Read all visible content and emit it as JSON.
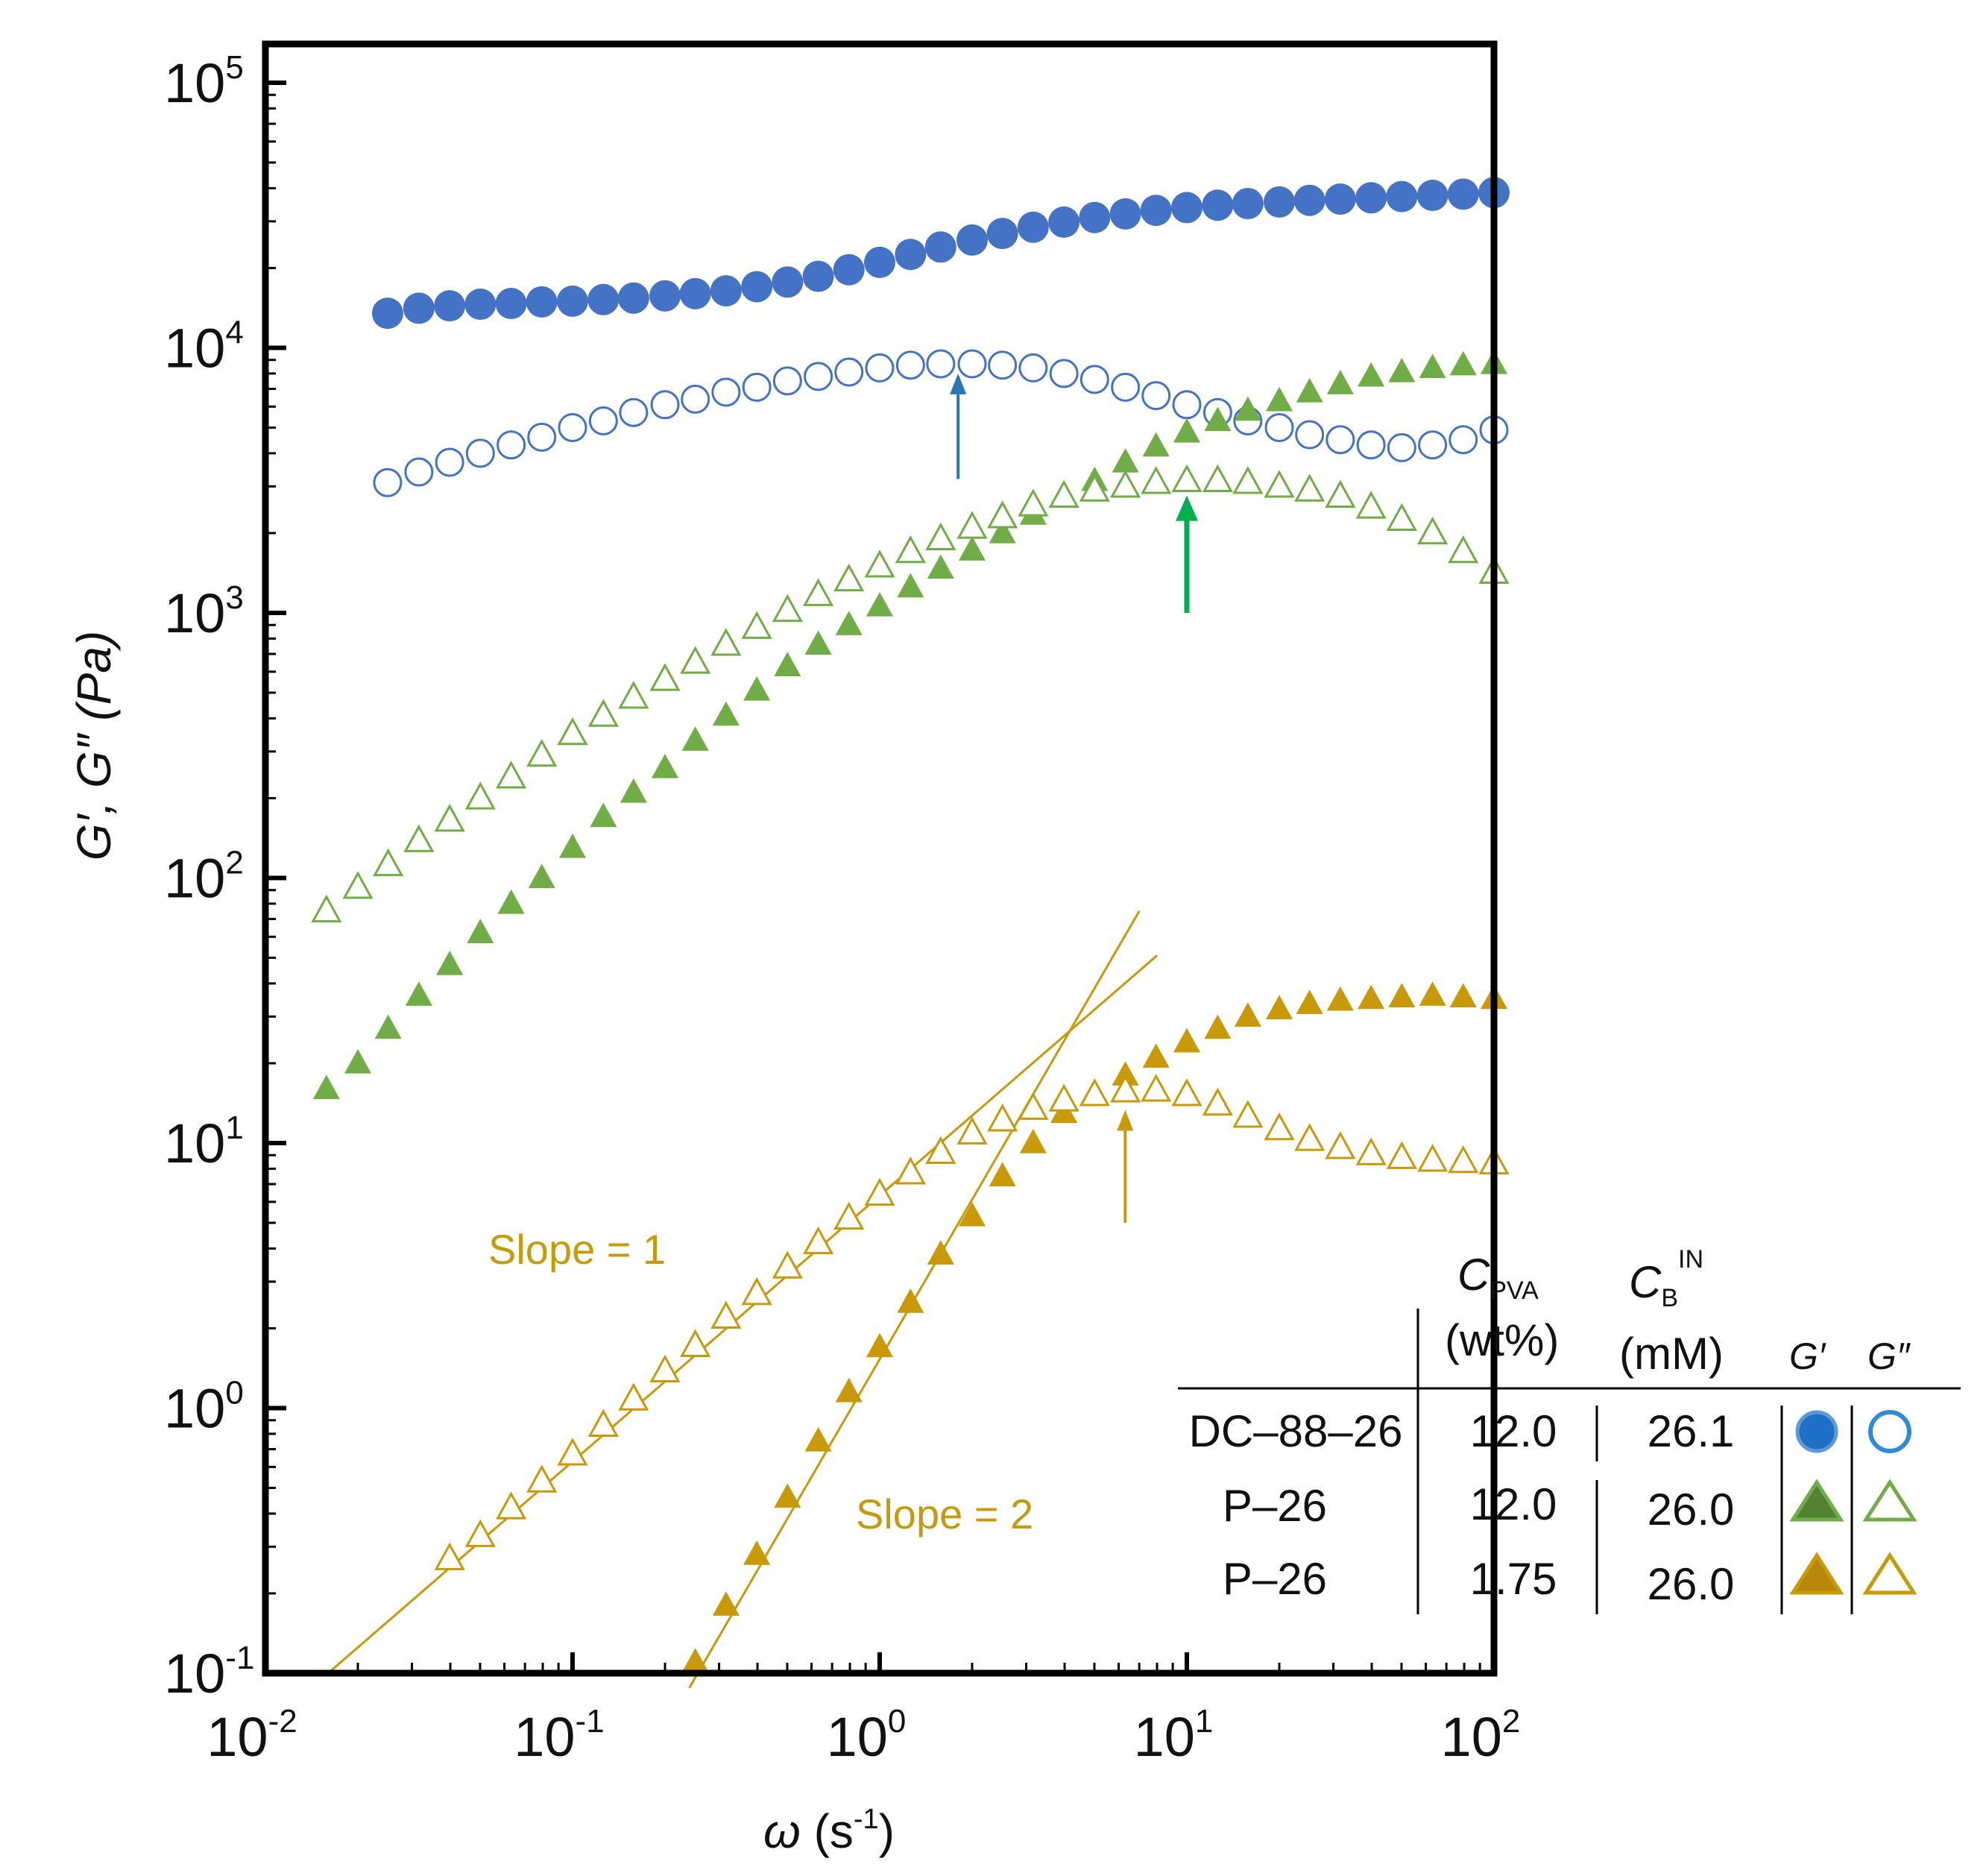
{
  "chart_data": {
    "type": "scatter",
    "title": "",
    "xscale": "log",
    "yscale": "log",
    "xlim": [
      0.01,
      100
    ],
    "ylim": [
      0.1,
      140000
    ],
    "xlabel": {
      "symbol": "ω",
      "text": " (s",
      "exp": "-1",
      "close": ")"
    },
    "ylabel": "G′, G″ (Pa)",
    "xticks": [
      {
        "base": "10",
        "exp": "-2",
        "value": 0.01
      },
      {
        "base": "10",
        "exp": "-1",
        "value": 0.1
      },
      {
        "base": "10",
        "exp": "0",
        "value": 1
      },
      {
        "base": "10",
        "exp": "1",
        "value": 10
      },
      {
        "base": "10",
        "exp": "2",
        "value": 100
      }
    ],
    "yticks": [
      {
        "base": "10",
        "exp": "-1",
        "value": 0.1
      },
      {
        "base": "10",
        "exp": "0",
        "value": 1
      },
      {
        "base": "10",
        "exp": "1",
        "value": 10
      },
      {
        "base": "10",
        "exp": "2",
        "value": 100
      },
      {
        "base": "10",
        "exp": "3",
        "value": 1000
      },
      {
        "base": "10",
        "exp": "4",
        "value": 10000
      },
      {
        "base": "10",
        "exp": "5",
        "value": 100000
      }
    ],
    "colors": {
      "blue": "#4472c4",
      "green": "#70ad47",
      "gold": "#c89a0a",
      "blue_arrow": "#2e75b6",
      "green_arrow": "#00b050"
    },
    "series": [
      {
        "name": "DC-88-26 G′",
        "marker": "circle",
        "filled": true,
        "color": "#4472c4",
        "x": [
          0.025,
          0.0316,
          0.0398,
          0.0501,
          0.0631,
          0.0794,
          0.1,
          0.126,
          0.158,
          0.2,
          0.251,
          0.316,
          0.398,
          0.501,
          0.631,
          0.794,
          1.0,
          1.26,
          1.58,
          2.0,
          2.51,
          3.16,
          3.98,
          5.01,
          6.31,
          7.94,
          10,
          12.6,
          15.8,
          20,
          25.1,
          31.6,
          39.8,
          50.1,
          63.1,
          79.4,
          100
        ],
        "y": [
          13500,
          14100,
          14400,
          14600,
          14700,
          14900,
          15000,
          15200,
          15400,
          15700,
          16000,
          16400,
          17000,
          17700,
          18600,
          19700,
          21000,
          22500,
          24000,
          25500,
          27000,
          28500,
          29800,
          31000,
          32000,
          33000,
          33800,
          34500,
          35000,
          35500,
          36000,
          36400,
          36800,
          37200,
          37600,
          38000,
          38500
        ]
      },
      {
        "name": "DC-88-26 G″",
        "marker": "circle",
        "filled": false,
        "color": "#4472c4",
        "x": [
          0.025,
          0.0316,
          0.0398,
          0.0501,
          0.0631,
          0.0794,
          0.1,
          0.126,
          0.158,
          0.2,
          0.251,
          0.316,
          0.398,
          0.501,
          0.631,
          0.794,
          1.0,
          1.26,
          1.58,
          2.0,
          2.51,
          3.16,
          3.98,
          5.01,
          6.31,
          7.94,
          10,
          12.6,
          15.8,
          20,
          25.1,
          31.6,
          39.8,
          50.1,
          63.1,
          79.4,
          100
        ],
        "y": [
          3100,
          3400,
          3700,
          4000,
          4300,
          4600,
          5000,
          5300,
          5700,
          6100,
          6400,
          6800,
          7100,
          7500,
          7800,
          8100,
          8400,
          8600,
          8700,
          8700,
          8600,
          8400,
          8000,
          7600,
          7100,
          6600,
          6100,
          5700,
          5300,
          5000,
          4700,
          4500,
          4300,
          4200,
          4300,
          4500,
          4900
        ]
      },
      {
        "name": "P-26 (12.0 wt%) G′",
        "marker": "triangle",
        "filled": true,
        "color": "#70ad47",
        "x": [
          0.0158,
          0.02,
          0.0251,
          0.0316,
          0.0398,
          0.0501,
          0.0631,
          0.0794,
          0.1,
          0.126,
          0.158,
          0.2,
          0.251,
          0.316,
          0.398,
          0.501,
          0.631,
          0.794,
          1.0,
          1.26,
          1.58,
          2.0,
          2.51,
          3.16,
          3.98,
          5.01,
          6.31,
          7.94,
          10,
          12.6,
          15.8,
          20,
          25.1,
          31.6,
          39.8,
          50.1,
          63.1,
          79.4,
          100
        ],
        "y": [
          16,
          20,
          27,
          36,
          47,
          62,
          80,
          100,
          130,
          170,
          210,
          260,
          330,
          410,
          510,
          630,
          760,
          900,
          1060,
          1250,
          1470,
          1720,
          2000,
          2350,
          2750,
          3150,
          3700,
          4250,
          4800,
          5300,
          5800,
          6300,
          6800,
          7300,
          7800,
          8100,
          8400,
          8600,
          8700
        ]
      },
      {
        "name": "P-26 (12.0 wt%) G″",
        "marker": "triangle",
        "filled": false,
        "color": "#70ad47",
        "x": [
          0.0158,
          0.02,
          0.0251,
          0.0316,
          0.0398,
          0.0501,
          0.0631,
          0.0794,
          0.1,
          0.126,
          0.158,
          0.2,
          0.251,
          0.316,
          0.398,
          0.501,
          0.631,
          0.794,
          1.0,
          1.26,
          1.58,
          2.0,
          2.51,
          3.16,
          3.98,
          5.01,
          6.31,
          7.94,
          10,
          12.6,
          15.8,
          20,
          25.1,
          31.6,
          39.8,
          50.1,
          63.1,
          79.4,
          100
        ],
        "y": [
          75,
          92,
          112,
          138,
          165,
          200,
          240,
          290,
          350,
          410,
          480,
          560,
          650,
          760,
          880,
          1020,
          1170,
          1330,
          1500,
          1700,
          1900,
          2100,
          2300,
          2550,
          2750,
          2900,
          3000,
          3100,
          3150,
          3150,
          3100,
          3000,
          2900,
          2750,
          2500,
          2250,
          2000,
          1700,
          1420
        ]
      },
      {
        "name": "P-26 (1.75 wt%) G′",
        "marker": "triangle",
        "filled": true,
        "color": "#c89a0a",
        "x": [
          0.251,
          0.316,
          0.398,
          0.501,
          0.631,
          0.794,
          1.0,
          1.26,
          1.58,
          2.0,
          2.51,
          3.16,
          3.98,
          5.01,
          6.31,
          7.94,
          10,
          12.6,
          15.8,
          20,
          25.1,
          31.6,
          39.8,
          50.1,
          63.1,
          79.4,
          100
        ],
        "y": [
          0.11,
          0.18,
          0.28,
          0.46,
          0.75,
          1.15,
          1.7,
          2.5,
          3.8,
          5.3,
          7.5,
          10,
          13,
          15.5,
          18,
          21,
          24,
          27,
          30,
          32,
          33.5,
          34.5,
          35,
          35.5,
          36,
          35.5,
          35
        ]
      },
      {
        "name": "P-26 (1.75 wt%) G″",
        "marker": "triangle",
        "filled": false,
        "color": "#c89a0a",
        "x": [
          0.0398,
          0.0501,
          0.0631,
          0.0794,
          0.1,
          0.126,
          0.158,
          0.2,
          0.251,
          0.316,
          0.398,
          0.501,
          0.631,
          0.794,
          1.0,
          1.26,
          1.58,
          2.0,
          2.51,
          3.16,
          3.98,
          5.01,
          6.31,
          7.94,
          10,
          12.6,
          15.8,
          20,
          25.1,
          31.6,
          39.8,
          50.1,
          63.1,
          79.4,
          100
        ],
        "y": [
          0.27,
          0.33,
          0.42,
          0.53,
          0.67,
          0.86,
          1.08,
          1.38,
          1.72,
          2.2,
          2.7,
          3.4,
          4.2,
          5.2,
          6.4,
          7.7,
          9.2,
          10.9,
          12.2,
          13.5,
          14.5,
          15.2,
          15.7,
          15.8,
          15.2,
          14,
          12.6,
          11.3,
          10.3,
          9.6,
          9.1,
          8.8,
          8.6,
          8.5,
          8.4
        ]
      }
    ],
    "fit_lines": [
      {
        "label": "Slope = 1",
        "slope": 1,
        "color": "#c89a0a",
        "x": [
          0.016,
          8
        ],
        "y": [
          0.1,
          51
        ]
      },
      {
        "label": "Slope = 2",
        "slope": 2,
        "color": "#c89a0a",
        "x": [
          0.24,
          7
        ],
        "y": [
          0.088,
          75
        ]
      }
    ],
    "arrows": [
      {
        "color": "#2e75b6",
        "x": 1.8,
        "y_from": 3200,
        "y_to": 7800
      },
      {
        "color": "#00b050",
        "x": 10,
        "y_from": 1000,
        "y_to": 2700
      },
      {
        "color": "#c89a0a",
        "x": 6.3,
        "y_from": 5,
        "y_to": 13
      }
    ],
    "legend": {
      "placement": "bottom-right",
      "headers": {
        "cpva": {
          "symbol": "C",
          "sub": "PVA",
          "unit": "(wt%)"
        },
        "cb": {
          "symbol": "C",
          "sub": "B",
          "sup": "IN",
          "unit": "(mM)"
        },
        "gp": "G′",
        "gpp": "G″"
      },
      "rows": [
        {
          "sample": "DC–88–26",
          "cpva": "12.0",
          "cb": "26.1",
          "marker": "circle",
          "color": "#4472c4"
        },
        {
          "sample": "P–26",
          "cpva": "12.0",
          "cb": "26.0",
          "marker": "triangle",
          "color": "#70ad47"
        },
        {
          "sample": "P–26",
          "cpva": "1.75",
          "cb": "26.0",
          "marker": "triangle",
          "color": "#c89a0a"
        }
      ]
    }
  }
}
